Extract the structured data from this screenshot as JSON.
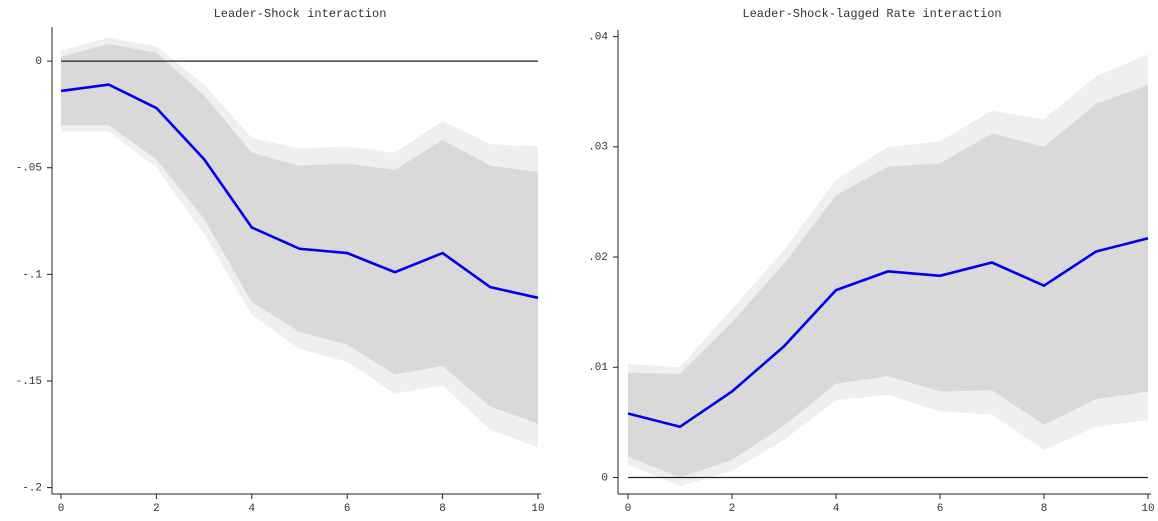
{
  "chart_data": [
    {
      "type": "line_band",
      "title": "Leader-Shock interaction",
      "x": [
        0,
        1,
        2,
        3,
        4,
        5,
        6,
        7,
        8,
        9,
        10
      ],
      "values": [
        -0.014,
        -0.011,
        -0.022,
        -0.046,
        -0.078,
        -0.088,
        -0.09,
        -0.099,
        -0.09,
        -0.106,
        -0.111
      ],
      "band_inner": {
        "upper": [
          0.002,
          0.008,
          0.004,
          -0.016,
          -0.043,
          -0.049,
          -0.048,
          -0.051,
          -0.037,
          -0.049,
          -0.052
        ],
        "lower": [
          -0.03,
          -0.03,
          -0.046,
          -0.074,
          -0.113,
          -0.127,
          -0.133,
          -0.147,
          -0.143,
          -0.162,
          -0.17
        ]
      },
      "band_outer": {
        "upper": [
          0.005,
          0.011,
          0.007,
          -0.011,
          -0.036,
          -0.041,
          -0.04,
          -0.043,
          -0.028,
          -0.039,
          -0.04
        ],
        "lower": [
          -0.033,
          -0.033,
          -0.05,
          -0.081,
          -0.119,
          -0.135,
          -0.141,
          -0.156,
          -0.152,
          -0.173,
          -0.181
        ]
      },
      "reference_line": 0,
      "color": "#0000ee",
      "band_inner_color": "#d9d9d9",
      "band_outer_color": "#efefef",
      "xlim": [
        0,
        10
      ],
      "xticks": [
        0,
        2,
        4,
        6,
        8,
        10
      ],
      "ylim": [
        -0.203,
        0.016
      ],
      "yticks": [
        0,
        {
          "value": -0.05,
          "label": "-.05"
        },
        {
          "value": -0.1,
          "label": "-.1"
        },
        {
          "value": -0.15,
          "label": "-.15"
        },
        {
          "value": -0.2,
          "label": "-.2"
        }
      ]
    },
    {
      "type": "line_band",
      "title": "Leader-Shock-lagged Rate interaction",
      "x": [
        0,
        1,
        2,
        3,
        4,
        5,
        6,
        7,
        8,
        9,
        10
      ],
      "values": [
        0.0058,
        0.0046,
        0.0078,
        0.0119,
        0.017,
        0.0187,
        0.0183,
        0.0195,
        0.0174,
        0.0205,
        0.0217
      ],
      "band_inner": {
        "upper": [
          0.0095,
          0.0094,
          0.0141,
          0.0194,
          0.0256,
          0.0282,
          0.0285,
          0.0312,
          0.03,
          0.0339,
          0.0356
        ],
        "lower": [
          0.0019,
          0.0,
          0.0016,
          0.0047,
          0.0085,
          0.0092,
          0.0078,
          0.0079,
          0.0048,
          0.0071,
          0.0078
        ]
      },
      "band_outer": {
        "upper": [
          0.0103,
          0.01,
          0.0153,
          0.0206,
          0.027,
          0.03,
          0.0305,
          0.0333,
          0.0325,
          0.0364,
          0.0384
        ],
        "lower": [
          0.0012,
          -0.0008,
          0.0006,
          0.0034,
          0.007,
          0.0075,
          0.006,
          0.0057,
          0.0025,
          0.0046,
          0.0052
        ]
      },
      "reference_line": 0,
      "color": "#0000ee",
      "band_inner_color": "#d9d9d9",
      "band_outer_color": "#efefef",
      "xlim": [
        0,
        10
      ],
      "xticks": [
        0,
        2,
        4,
        6,
        8,
        10
      ],
      "ylim": [
        -0.0015,
        0.0406
      ],
      "yticks": [
        0,
        {
          "value": 0.01,
          "label": ".01"
        },
        {
          "value": 0.02,
          "label": ".02"
        },
        {
          "value": 0.03,
          "label": ".03"
        },
        {
          "value": 0.04,
          "label": ".04"
        }
      ]
    }
  ]
}
